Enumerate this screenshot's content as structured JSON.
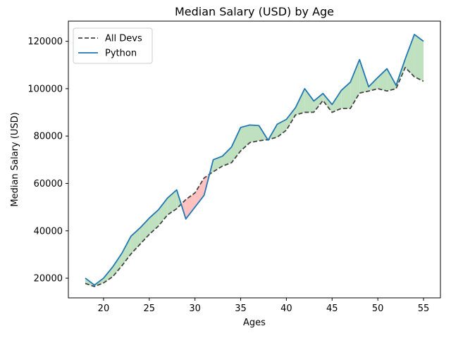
{
  "chart_data": {
    "type": "line",
    "title": "Median Salary (USD) by Age",
    "xlabel": "Ages",
    "ylabel": "Median Salary (USD)",
    "xlim": [
      16.15,
      56.85
    ],
    "ylim": [
      11700,
      128500
    ],
    "xticks": [
      20,
      25,
      30,
      35,
      40,
      45,
      50,
      55
    ],
    "yticks": [
      20000,
      40000,
      60000,
      80000,
      100000,
      120000
    ],
    "x": [
      18,
      19,
      20,
      21,
      22,
      23,
      24,
      25,
      26,
      27,
      28,
      29,
      30,
      31,
      32,
      33,
      34,
      35,
      36,
      37,
      38,
      39,
      40,
      41,
      42,
      43,
      44,
      45,
      46,
      47,
      48,
      49,
      50,
      51,
      52,
      53,
      54,
      55
    ],
    "series": [
      {
        "name": "All Devs",
        "style": "dashed",
        "color": "#444444",
        "values": [
          17784,
          16500,
          18012,
          20628,
          25206,
          30252,
          34368,
          38496,
          42000,
          46752,
          49320,
          53200,
          56000,
          62316,
          64928,
          67317,
          68748,
          73752,
          77232,
          78000,
          78508,
          79536,
          82488,
          88935,
          90000,
          90056,
          95000,
          90000,
          91633,
          91660,
          98150,
          98964,
          100000,
          98988,
          100000,
          108923,
          105000,
          103117
        ]
      },
      {
        "name": "Python",
        "style": "solid",
        "color": "#1f77b4",
        "values": [
          20046,
          17100,
          20000,
          24744,
          30500,
          37732,
          41247,
          45372,
          48876,
          53850,
          57287,
          45000,
          50000,
          55000,
          70000,
          71496,
          75370,
          83640,
          84666,
          84392,
          78254,
          85000,
          87038,
          91991,
          100000,
          94796,
          97962,
          93302,
          99240,
          102736,
          112285,
          100771,
          104708,
          108423,
          101407,
          112542,
          122870,
          120000
        ]
      }
    ],
    "fill_between": {
      "above_color": "#c0e1c0",
      "below_color": "#ffc0c0"
    },
    "legend_position": "upper-left",
    "grid": false
  }
}
